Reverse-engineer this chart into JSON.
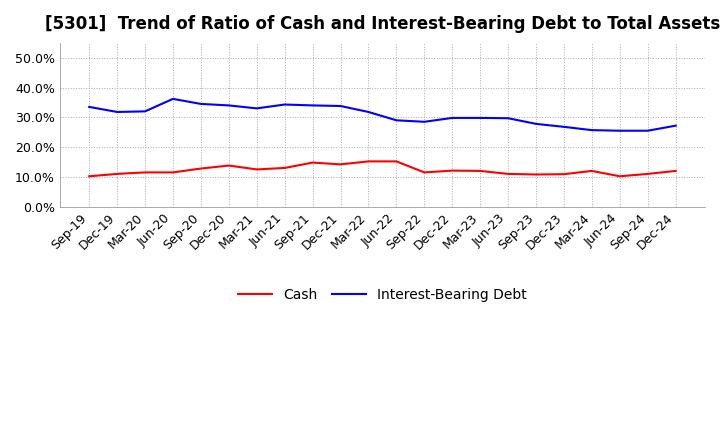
{
  "title": "[5301]  Trend of Ratio of Cash and Interest-Bearing Debt to Total Assets",
  "x_labels": [
    "Sep-19",
    "Dec-19",
    "Mar-20",
    "Jun-20",
    "Sep-20",
    "Dec-20",
    "Mar-21",
    "Jun-21",
    "Sep-21",
    "Dec-21",
    "Mar-22",
    "Jun-22",
    "Sep-22",
    "Dec-22",
    "Mar-23",
    "Jun-23",
    "Sep-23",
    "Dec-23",
    "Mar-24",
    "Jun-24",
    "Sep-24",
    "Dec-24"
  ],
  "cash": [
    0.102,
    0.11,
    0.115,
    0.115,
    0.128,
    0.138,
    0.125,
    0.13,
    0.148,
    0.142,
    0.152,
    0.152,
    0.115,
    0.121,
    0.12,
    0.11,
    0.108,
    0.109,
    0.12,
    0.102,
    0.11,
    0.12
  ],
  "ibd": [
    0.335,
    0.318,
    0.32,
    0.362,
    0.345,
    0.34,
    0.33,
    0.343,
    0.34,
    0.338,
    0.318,
    0.29,
    0.285,
    0.298,
    0.298,
    0.297,
    0.278,
    0.268,
    0.257,
    0.255,
    0.255,
    0.272
  ],
  "cash_color": "#ff0000",
  "ibd_color": "#0000ff",
  "background_color": "#ffffff",
  "grid_color": "#aaaaaa",
  "ylim": [
    0.0,
    0.55
  ],
  "yticks": [
    0.0,
    0.1,
    0.2,
    0.3,
    0.4,
    0.5
  ],
  "legend_cash": "Cash",
  "legend_ibd": "Interest-Bearing Debt",
  "title_fontsize": 12,
  "tick_fontsize": 9,
  "legend_fontsize": 10
}
